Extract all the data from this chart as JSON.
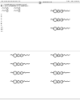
{
  "background_color": "#ffffff",
  "text_color": "#222222",
  "line_color": "#555555",
  "header_left": "US 20130096130 A1",
  "header_right": "Apr. 18, 2013",
  "page_num": "19",
  "struct_color": "#444444"
}
